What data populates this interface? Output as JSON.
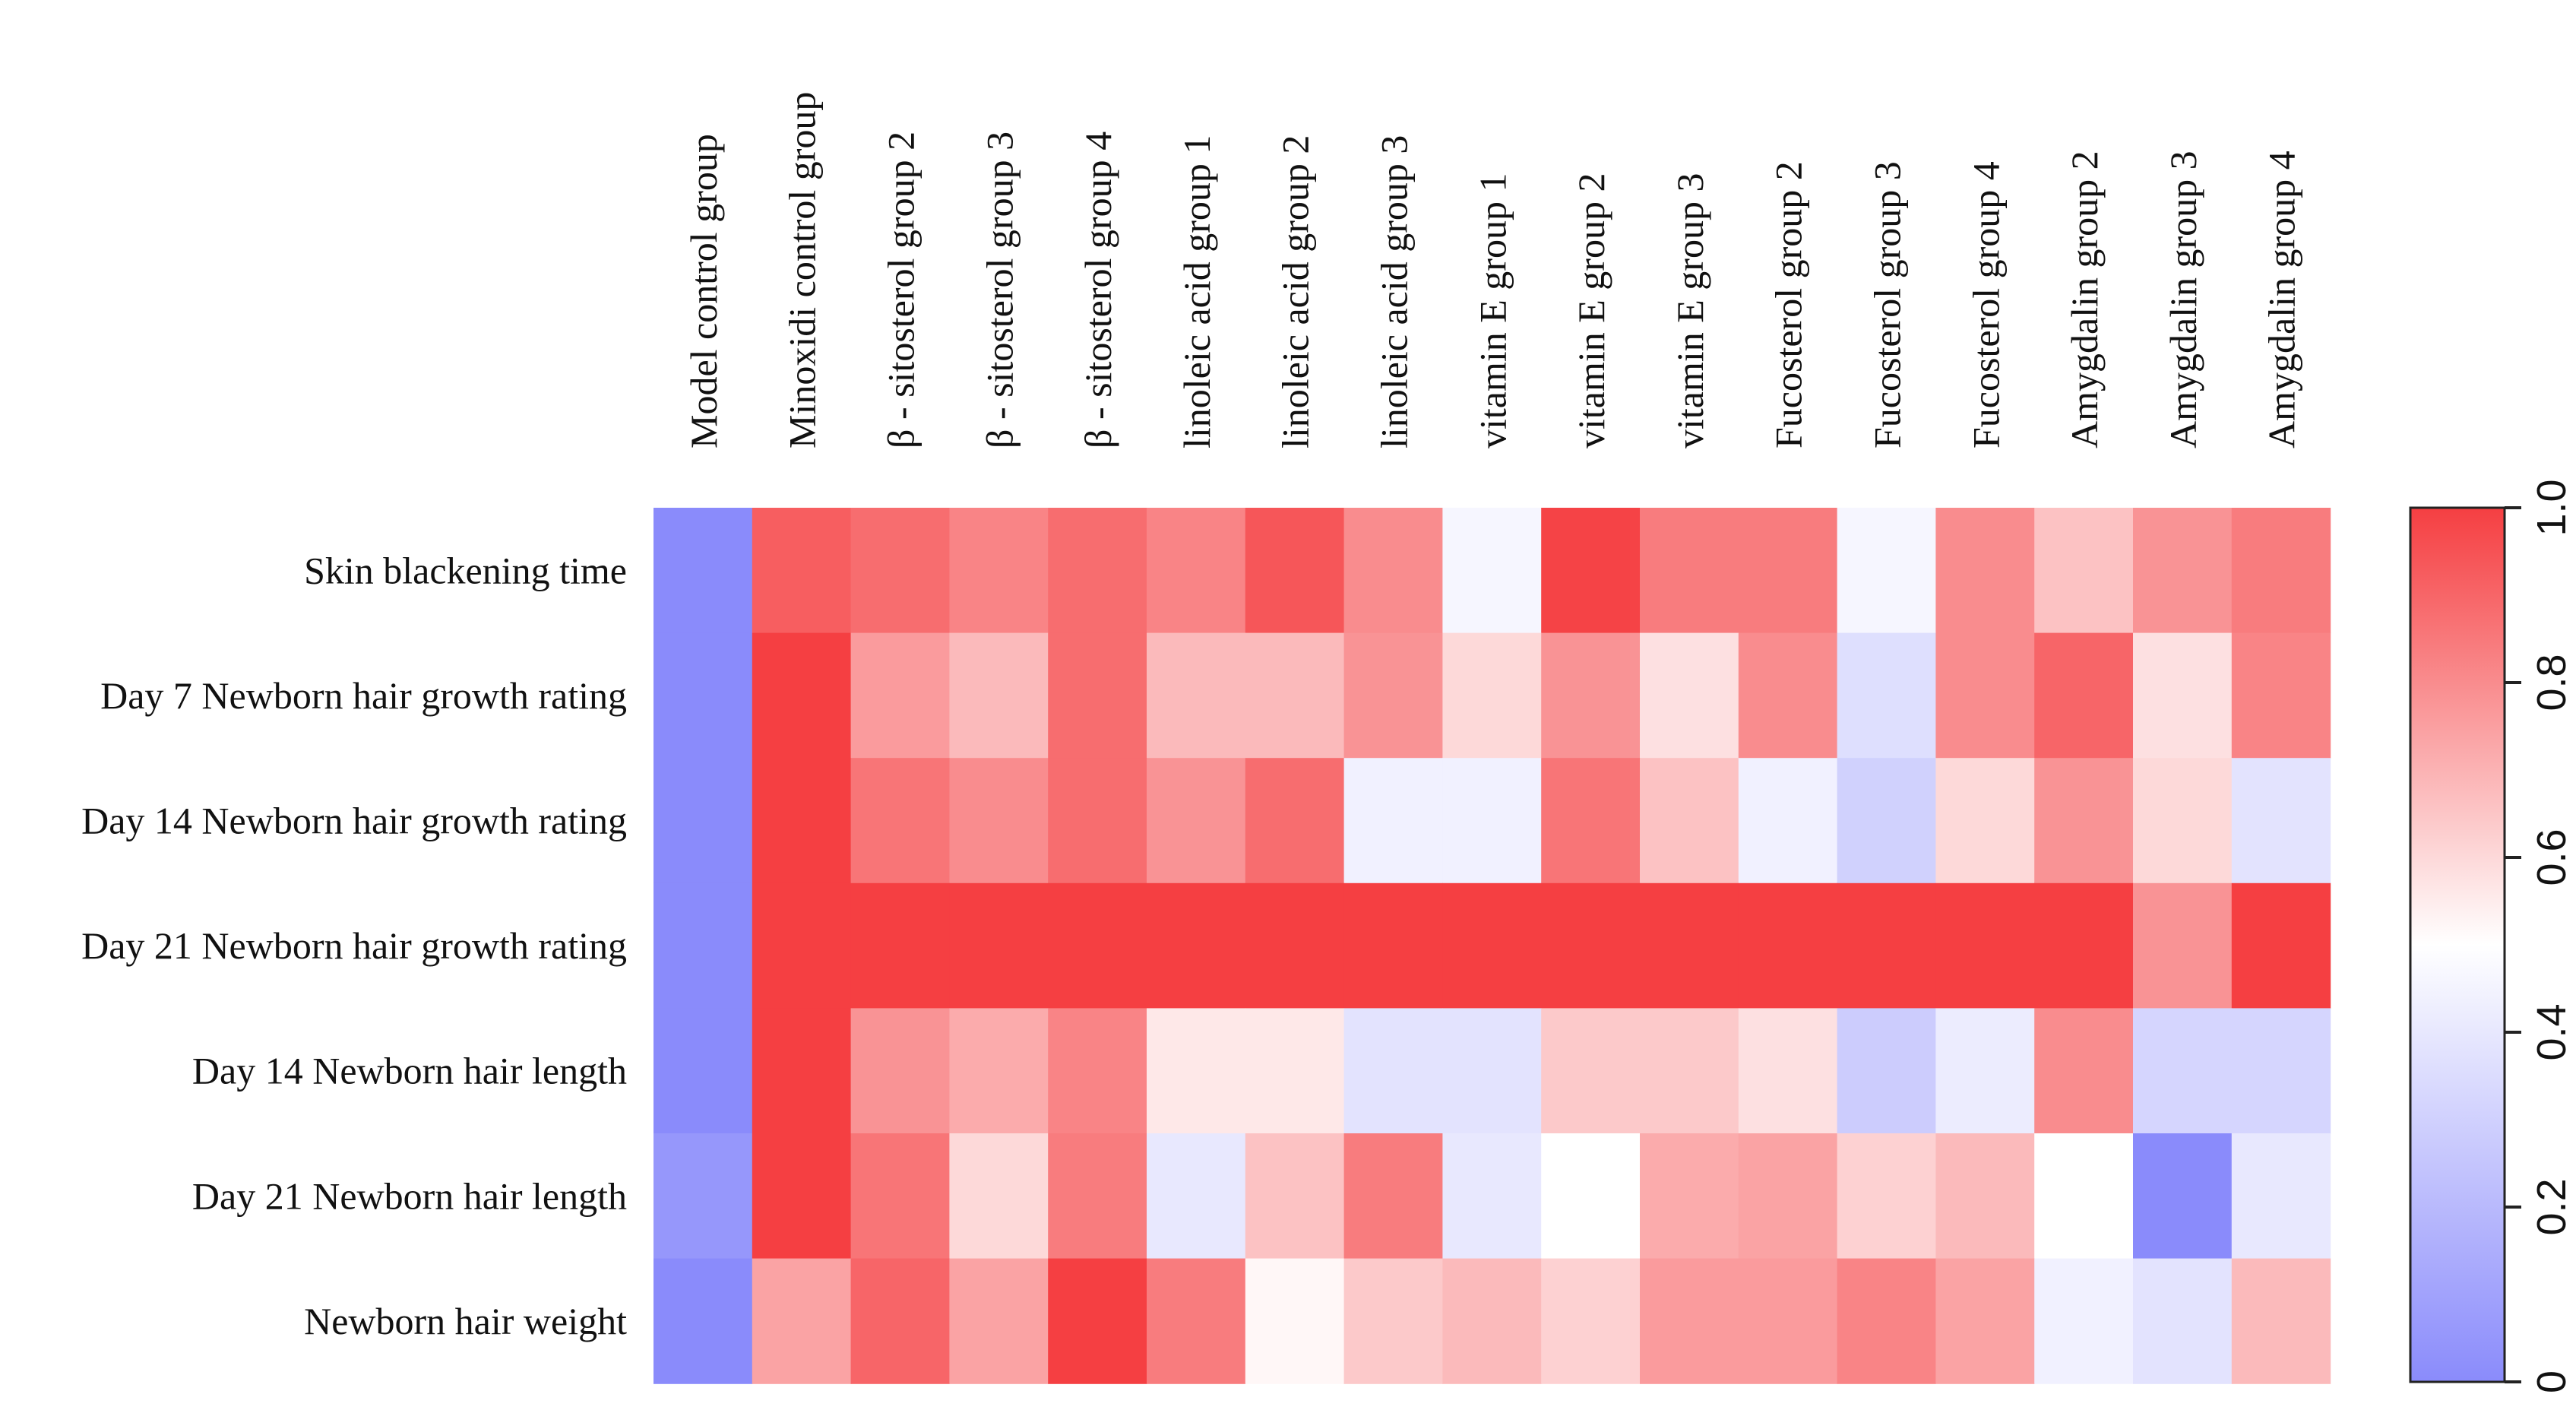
{
  "chart_data": {
    "type": "heatmap",
    "title": "",
    "columns": [
      "Model control group",
      "Minoxidi control group",
      "β - sitosterol group 2",
      "β - sitosterol group 3",
      "β - sitosterol group 4",
      "linoleic acid group 1",
      "linoleic acid group 2",
      "linoleic acid group 3",
      "vitamin E group 1",
      "vitamin E group 2",
      "vitamin E group 3",
      "Fucosterol group 2",
      "Fucosterol group 3",
      "Fucosterol group 4",
      "Amygdalin group 2",
      "Amygdalin group 3",
      "Amygdalin group 4"
    ],
    "rows": [
      "Skin blackening time",
      "Day 7 Newborn hair growth rating",
      "Day 14 Newborn hair growth  rating",
      "Day 21 Newborn hair growth rating",
      "Day 14 Newborn hair length",
      "Day 21 Newborn hair length",
      "Newborn hair weight"
    ],
    "values": [
      [
        0.0,
        0.92,
        0.88,
        0.82,
        0.88,
        0.82,
        0.94,
        0.8,
        0.46,
        0.99,
        0.84,
        0.84,
        0.46,
        0.8,
        0.66,
        0.78,
        0.84
      ],
      [
        0.0,
        1.0,
        0.76,
        0.68,
        0.88,
        0.68,
        0.68,
        0.78,
        0.6,
        0.78,
        0.58,
        0.8,
        0.36,
        0.8,
        0.9,
        0.58,
        0.82
      ],
      [
        0.0,
        1.0,
        0.86,
        0.8,
        0.88,
        0.78,
        0.88,
        0.44,
        0.44,
        0.86,
        0.66,
        0.44,
        0.3,
        0.6,
        0.78,
        0.6,
        0.38
      ],
      [
        0.0,
        1.0,
        1.0,
        1.0,
        1.0,
        1.0,
        1.0,
        1.0,
        1.0,
        1.0,
        1.0,
        1.0,
        1.0,
        1.0,
        1.0,
        0.78,
        1.0
      ],
      [
        0.0,
        1.0,
        0.78,
        0.72,
        0.82,
        0.56,
        0.56,
        0.38,
        0.38,
        0.64,
        0.64,
        0.58,
        0.28,
        0.42,
        0.8,
        0.32,
        0.32
      ],
      [
        0.05,
        1.0,
        0.86,
        0.6,
        0.84,
        0.4,
        0.66,
        0.84,
        0.4,
        0.5,
        0.72,
        0.74,
        0.62,
        0.68,
        0.5,
        0.0,
        0.4
      ],
      [
        0.0,
        0.74,
        0.9,
        0.74,
        1.0,
        0.84,
        0.52,
        0.64,
        0.68,
        0.62,
        0.76,
        0.76,
        0.82,
        0.74,
        0.44,
        0.38,
        0.68
      ]
    ],
    "colorbar": {
      "min": 0,
      "max": 1,
      "ticks": [
        "0",
        "0.2",
        "0.4",
        "0.6",
        "0.8",
        "1.0"
      ],
      "low_color": "#8a8bfb",
      "mid_color": "#ffffff",
      "high_color": "#f53f42"
    }
  }
}
